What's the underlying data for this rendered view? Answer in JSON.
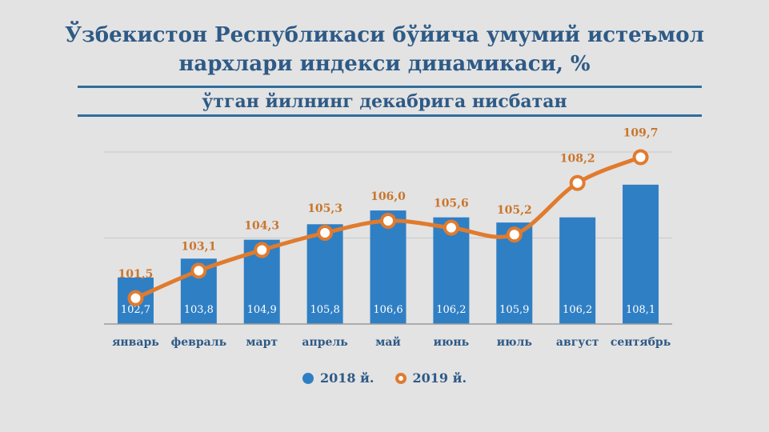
{
  "chart_data": {
    "type": "bar",
    "title": "Ўзбекистон Республикаси бўйича умумий истеъмол нархлари индекси динамикаси, %",
    "title_lines": [
      "Ўзбекистон Республикаси бўйича умумий истеъмол",
      "нархлари индекси динамикаси, %"
    ],
    "subtitle": "ўтган йилнинг декабрига нисбатан",
    "categories": [
      "январь",
      "февраль",
      "март",
      "апрель",
      "май",
      "июнь",
      "июль",
      "август",
      "сентябрь"
    ],
    "series": [
      {
        "name": "2018 й.",
        "type": "bar",
        "color": "#2f7fc4",
        "values": [
          102.7,
          103.8,
          104.9,
          105.8,
          106.6,
          106.2,
          105.9,
          106.2,
          108.1
        ],
        "labels": [
          "102,7",
          "103,8",
          "104,9",
          "105,8",
          "106,6",
          "106,2",
          "105,9",
          "106,2",
          "108,1"
        ]
      },
      {
        "name": "2019 й.",
        "type": "line",
        "color": "#e07b2e",
        "values": [
          101.5,
          103.1,
          104.3,
          105.3,
          106.0,
          105.6,
          105.2,
          108.2,
          109.7
        ],
        "labels": [
          "101,5",
          "103,1",
          "104,3",
          "105,3",
          "106,0",
          "105,6",
          "105,2",
          "108,2",
          "109,7"
        ]
      }
    ],
    "xlabel": "",
    "ylabel": "",
    "ylim": [
      100,
      110
    ],
    "grid": true,
    "legend": "bottom"
  }
}
